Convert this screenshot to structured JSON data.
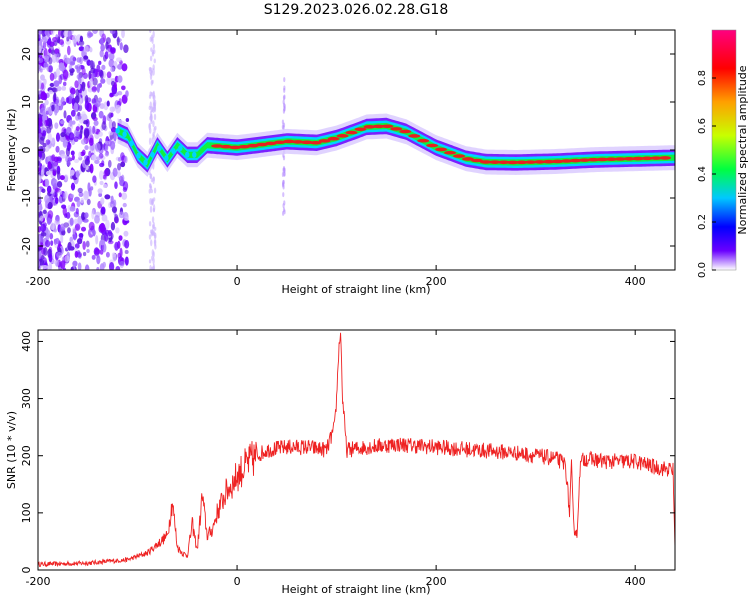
{
  "title": "S129.2023.026.02.28.G18",
  "chart_data": [
    {
      "type": "heatmap",
      "xlabel": "Height of straight line (km)",
      "ylabel": "Frequency (Hz)",
      "xlim": [
        -200,
        440
      ],
      "ylim": [
        -25,
        25
      ],
      "xticks": [
        -200,
        0,
        200,
        400
      ],
      "yticks": [
        20,
        10,
        0,
        -10,
        -20
      ],
      "colorbar": {
        "label": "Normalized spectral amplitude",
        "range": [
          0,
          1
        ],
        "ticks": [
          0.0,
          0.2,
          0.4,
          0.6,
          0.8
        ],
        "tick_labels": [
          "0.0",
          "0.2",
          "0.4",
          "0.6",
          "0.8"
        ],
        "colors": [
          "#ffffff",
          "#6a00ff",
          "#0000ff",
          "#00c8ff",
          "#00ff40",
          "#c8ff00",
          "#ffa000",
          "#ff0000",
          "#ff0080"
        ]
      },
      "ridge": {
        "x": [
          -120,
          -110,
          -100,
          -90,
          -80,
          -70,
          -60,
          -50,
          -40,
          -30,
          0,
          20,
          50,
          80,
          100,
          120,
          130,
          150,
          170,
          200,
          230,
          250,
          280,
          320,
          360,
          400,
          440
        ],
        "freq": [
          4,
          3,
          -1,
          -3,
          1,
          -2,
          1,
          -1,
          -1,
          1,
          0.5,
          1,
          1.8,
          1.5,
          2.5,
          4,
          4.8,
          5,
          3.8,
          0.5,
          -1.8,
          -2.5,
          -2.6,
          -2.4,
          -2,
          -1.8,
          -1.6
        ]
      },
      "spike_x": 47
    },
    {
      "type": "line",
      "xlabel": "Height of straight line (km)",
      "ylabel": "SNR (10 * v/v)",
      "xlim": [
        -200,
        440
      ],
      "ylim": [
        0,
        420
      ],
      "xticks": [
        -200,
        0,
        200,
        400
      ],
      "yticks": [
        0,
        100,
        200,
        300,
        400
      ],
      "color": "#ee2222",
      "series": {
        "x": [
          -200,
          -150,
          -110,
          -90,
          -80,
          -70,
          -65,
          -60,
          -55,
          -50,
          -45,
          -40,
          -35,
          -30,
          -25,
          -20,
          -15,
          -10,
          -5,
          0,
          10,
          20,
          30,
          50,
          70,
          90,
          98,
          100,
          102,
          104,
          106,
          110,
          130,
          160,
          200,
          240,
          280,
          320,
          330,
          334,
          336,
          338,
          340,
          342,
          344,
          346,
          350,
          370,
          400,
          420,
          438,
          440
        ],
        "y": [
          10,
          12,
          18,
          30,
          45,
          60,
          120,
          40,
          30,
          25,
          80,
          35,
          130,
          60,
          70,
          100,
          120,
          140,
          150,
          165,
          185,
          200,
          210,
          215,
          215,
          210,
          250,
          300,
          380,
          420,
          300,
          210,
          215,
          220,
          215,
          210,
          205,
          195,
          185,
          100,
          180,
          80,
          70,
          65,
          170,
          190,
          195,
          190,
          190,
          180,
          175,
          40
        ]
      }
    }
  ]
}
